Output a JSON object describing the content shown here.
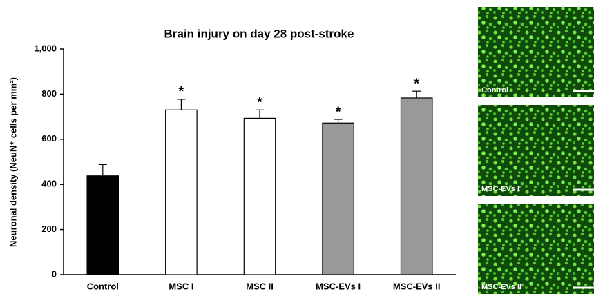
{
  "chart_data": {
    "type": "bar",
    "title": "Brain injury on day 28 post-stroke",
    "y_label": "Neuronal density (NeuN⁺ cells per mm²)",
    "categories": [
      "Control",
      "MSC I",
      "MSC II",
      "MSC-EVs I",
      "MSC-EVs II"
    ],
    "values": [
      438,
      730,
      693,
      672,
      783
    ],
    "errors": [
      50,
      47,
      37,
      16,
      30
    ],
    "colors": [
      "#000000",
      "#ffffff",
      "#ffffff",
      "#999999",
      "#999999"
    ],
    "significance": [
      null,
      "*",
      "*",
      "*",
      "*"
    ],
    "ylim": [
      0,
      1000
    ],
    "yticks": [
      0,
      200,
      400,
      600,
      800,
      {
        "value": 1000,
        "label": "1,000"
      }
    ],
    "grid": false
  },
  "panels": [
    {
      "label": "Control"
    },
    {
      "label": "MSC-EVs I"
    },
    {
      "label": "MSC-EVs II"
    }
  ]
}
